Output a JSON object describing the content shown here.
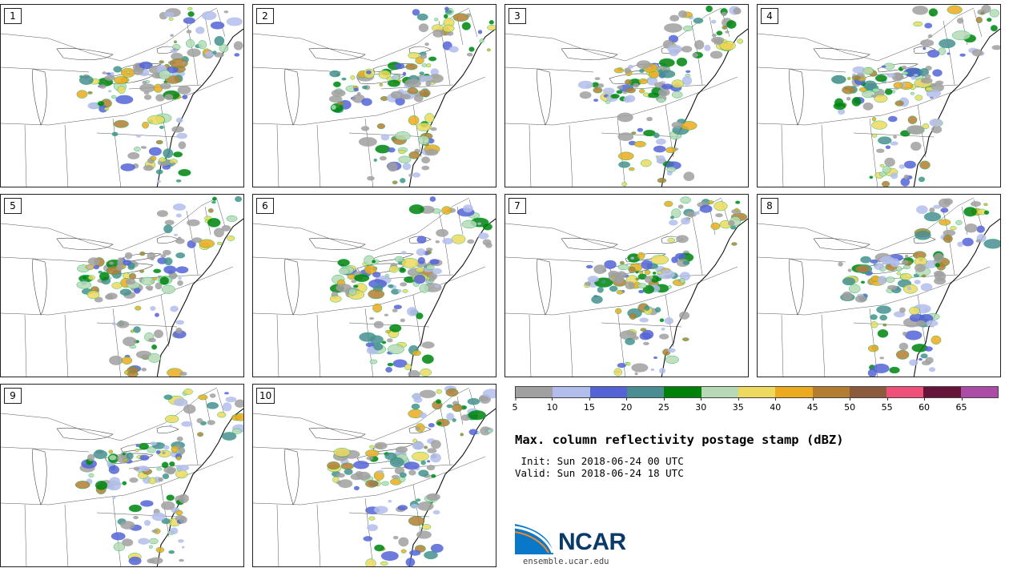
{
  "panels": [
    {
      "label": "1"
    },
    {
      "label": "2"
    },
    {
      "label": "3"
    },
    {
      "label": "4"
    },
    {
      "label": "5"
    },
    {
      "label": "6"
    },
    {
      "label": "7"
    },
    {
      "label": "8"
    },
    {
      "label": "9"
    },
    {
      "label": "10"
    }
  ],
  "colorbar": {
    "colors": [
      "#a0a0a0",
      "#b3bdeb",
      "#5464d6",
      "#4a8e94",
      "#00820a",
      "#b7d9b6",
      "#edd95e",
      "#ecaa1f",
      "#b37e32",
      "#8c5a3c",
      "#ef5079",
      "#66143a",
      "#ac4ca6"
    ],
    "ticks": [
      "5",
      "10",
      "15",
      "20",
      "25",
      "30",
      "35",
      "40",
      "45",
      "50",
      "55",
      "60",
      "65"
    ]
  },
  "title": "Max. column reflectivity postage stamp (dBZ)",
  "init": " Init: Sun 2018-06-24 00 UTC",
  "valid": "Valid: Sun 2018-06-24 18 UTC",
  "logo": {
    "text": "NCAR",
    "url": "ensemble.ucar.edu"
  }
}
